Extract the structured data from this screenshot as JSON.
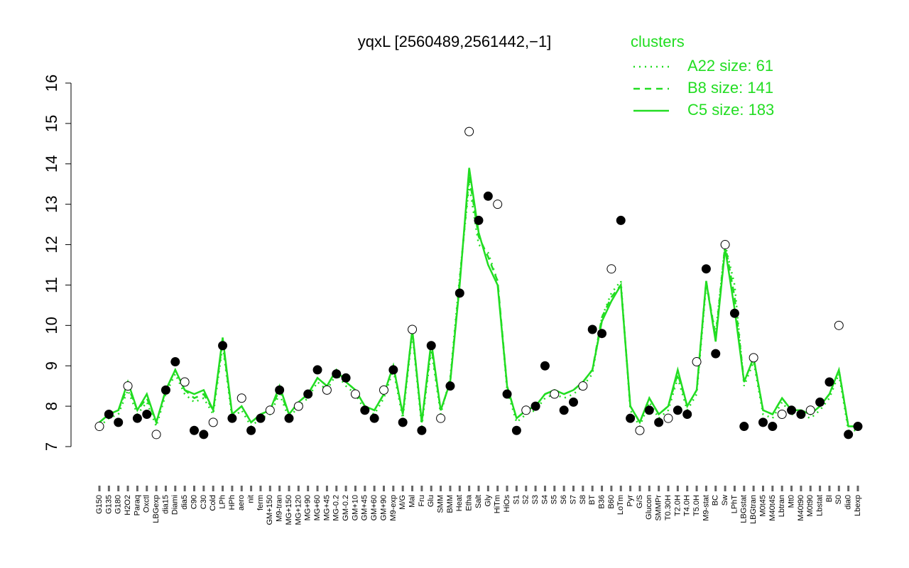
{
  "chart_data": {
    "type": "line",
    "title": "yqxL [2560489,2561442,−1]",
    "legend_title": "clusters",
    "legend_position": "top-right",
    "ylim": [
      7,
      16
    ],
    "yticks": [
      7,
      8,
      9,
      10,
      11,
      12,
      13,
      14,
      15,
      16
    ],
    "categories": [
      "G150",
      "G135",
      "G180",
      "H2O2",
      "Paraq",
      "Oxctl",
      "LBGexp",
      "dia15",
      "Diami",
      "dia5",
      "C90",
      "C30",
      "Cold",
      "LPh",
      "HPh",
      "aero",
      "nit",
      "ferm",
      "GM+150",
      "M9-tran",
      "MG+150",
      "MG+120",
      "MG+90",
      "MG+60",
      "MG+45",
      "MG-0.2",
      "GM-0.2",
      "GM+10",
      "GM+45",
      "GM+60",
      "GM+90",
      "M9-exp",
      "M/G",
      "Mal",
      "Fru",
      "Glu",
      "SMM",
      "BMM",
      "Heat",
      "Etha",
      "Salt",
      "Gly",
      "HiTm",
      "HiOs",
      "S1",
      "S2",
      "S3",
      "S4",
      "S5",
      "S6",
      "S7",
      "S8",
      "BT",
      "B36",
      "B60",
      "LoTm",
      "Pyr",
      "G/S",
      "Glucon",
      "SMMPr",
      "T0.30H",
      "T2.0H",
      "T4.0H",
      "T5.0H",
      "M9-stat",
      "BC",
      "Sw",
      "LPhT",
      "LBGstat",
      "LBGtran",
      "M0t45",
      "M40t45",
      "Lbtran",
      "Mt0",
      "M40t90",
      "M0t90",
      "Lbstat",
      "BI",
      "S0",
      "dia0",
      "Lbexp"
    ],
    "points": {
      "values": [
        7.5,
        7.8,
        7.6,
        8.5,
        7.7,
        7.8,
        7.3,
        8.4,
        9.1,
        8.6,
        7.4,
        7.3,
        7.6,
        9.5,
        7.7,
        8.2,
        7.4,
        7.7,
        7.9,
        8.4,
        7.7,
        8.0,
        8.3,
        8.9,
        8.4,
        8.8,
        8.7,
        8.3,
        7.9,
        7.7,
        8.4,
        8.9,
        7.6,
        9.9,
        7.4,
        9.5,
        7.7,
        8.5,
        10.8,
        14.8,
        12.6,
        13.2,
        13.0,
        8.3,
        7.4,
        7.9,
        8.0,
        9.0,
        8.3,
        7.9,
        8.1,
        8.5,
        9.9,
        9.8,
        11.4,
        12.6,
        7.7,
        7.4,
        7.9,
        7.6,
        7.7,
        7.9,
        7.8,
        9.1,
        11.4,
        9.3,
        12.0,
        10.3,
        7.5,
        9.2,
        7.6,
        7.5,
        7.8,
        7.9,
        7.8,
        7.9,
        8.1,
        8.6,
        10.0,
        7.3,
        7.5
      ]
    },
    "series": [
      {
        "name": "A22 size: 61",
        "color": "#22dd22",
        "style": "dotted",
        "values": [
          7.5,
          7.7,
          7.8,
          8.4,
          7.8,
          8.1,
          7.5,
          8.3,
          8.8,
          8.3,
          8.1,
          8.2,
          7.8,
          9.5,
          7.7,
          7.9,
          7.5,
          7.7,
          7.8,
          8.3,
          7.7,
          8.0,
          8.2,
          8.6,
          8.4,
          8.8,
          8.5,
          8.3,
          7.9,
          7.8,
          8.2,
          8.9,
          7.7,
          9.8,
          7.5,
          9.4,
          7.8,
          8.7,
          11.2,
          13.5,
          12.0,
          11.8,
          11.1,
          8.4,
          7.6,
          7.8,
          7.9,
          8.2,
          8.3,
          8.2,
          8.3,
          8.5,
          8.8,
          10.2,
          10.8,
          11.1,
          7.9,
          7.5,
          8.1,
          7.7,
          7.9,
          8.7,
          7.9,
          8.3,
          11.0,
          9.8,
          12.0,
          11.0,
          8.5,
          9.1,
          7.8,
          7.7,
          8.1,
          7.8,
          7.8,
          7.7,
          7.9,
          8.2,
          8.8,
          7.4,
          7.4
        ]
      },
      {
        "name": "B8 size: 141",
        "color": "#22dd22",
        "style": "dashed",
        "values": [
          7.6,
          7.8,
          7.9,
          8.5,
          7.9,
          8.2,
          7.6,
          8.4,
          8.9,
          8.4,
          8.2,
          8.3,
          7.9,
          9.6,
          7.8,
          8.0,
          7.6,
          7.8,
          7.9,
          8.4,
          7.8,
          8.1,
          8.3,
          8.7,
          8.5,
          8.9,
          8.6,
          8.4,
          8.0,
          7.9,
          8.3,
          9.0,
          7.8,
          9.9,
          7.6,
          9.5,
          7.9,
          8.6,
          11.1,
          13.7,
          12.2,
          11.7,
          11.1,
          8.5,
          7.7,
          7.9,
          8.0,
          8.3,
          8.4,
          8.3,
          8.4,
          8.6,
          8.9,
          10.2,
          10.7,
          11.0,
          8.0,
          7.6,
          8.2,
          7.8,
          8.0,
          8.8,
          8.0,
          8.4,
          11.1,
          9.7,
          12.0,
          10.7,
          8.6,
          9.2,
          7.9,
          7.8,
          8.2,
          7.9,
          7.9,
          7.8,
          8.0,
          8.3,
          8.9,
          7.5,
          7.5
        ]
      },
      {
        "name": "C5 size: 183",
        "color": "#22dd22",
        "style": "solid",
        "values": [
          7.6,
          7.8,
          7.9,
          8.6,
          7.9,
          8.3,
          7.6,
          8.4,
          8.9,
          8.4,
          8.3,
          8.4,
          7.9,
          9.7,
          7.8,
          8.0,
          7.6,
          7.8,
          7.9,
          8.5,
          7.8,
          8.1,
          8.3,
          8.7,
          8.5,
          8.9,
          8.6,
          8.4,
          8.0,
          7.9,
          8.3,
          9.0,
          7.8,
          9.9,
          7.6,
          9.6,
          7.9,
          8.6,
          11.0,
          13.9,
          12.3,
          11.5,
          11.0,
          8.5,
          7.7,
          7.9,
          8.0,
          8.3,
          8.4,
          8.3,
          8.4,
          8.6,
          8.9,
          10.1,
          10.6,
          11.0,
          8.0,
          7.6,
          8.2,
          7.8,
          8.0,
          8.9,
          8.0,
          8.4,
          11.1,
          9.6,
          11.9,
          10.4,
          8.6,
          9.2,
          7.9,
          7.8,
          8.2,
          7.9,
          7.9,
          7.8,
          8.0,
          8.3,
          8.9,
          7.5,
          7.5
        ]
      }
    ]
  }
}
